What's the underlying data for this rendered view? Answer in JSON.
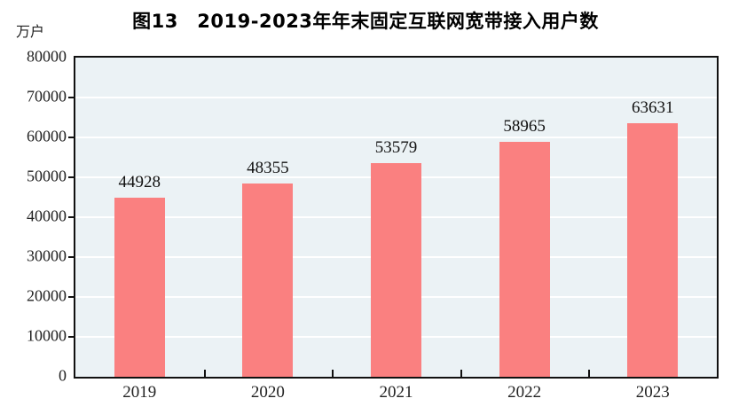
{
  "chart_data": {
    "type": "bar",
    "title": "图13　2019-2023年年末固定互联网宽带接入用户数",
    "unit_label": "万户",
    "categories": [
      "2019",
      "2020",
      "2021",
      "2022",
      "2023"
    ],
    "values": [
      44928,
      48355,
      53579,
      58965,
      63631
    ],
    "ylim": [
      0,
      80000
    ],
    "ytick_interval": 10000,
    "ytick_labels": [
      "0",
      "10000",
      "20000",
      "30000",
      "40000",
      "50000",
      "60000",
      "70000",
      "80000"
    ],
    "grid": "horizontal-white-on-light-blue",
    "legend": "none",
    "colors": {
      "bar_fill": "#fa8080",
      "plot_background": "#ebf2f5",
      "gridline": "#ffffff",
      "axis_border": "#111111",
      "text": "#111111"
    }
  }
}
